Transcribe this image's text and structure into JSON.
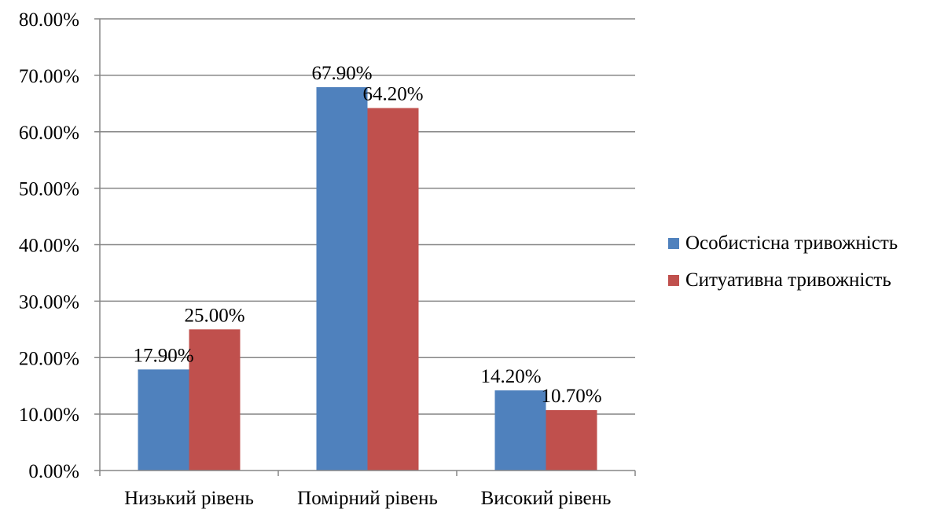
{
  "chart_data": {
    "type": "bar",
    "categories": [
      "Низький рівень",
      "Помірний рівень",
      "Високий рівень"
    ],
    "series": [
      {
        "name": "Особистісна тривожність",
        "values": [
          17.9,
          67.9,
          14.2
        ],
        "labels": [
          "17.90%",
          "67.90%",
          "14.20%"
        ],
        "color": "#4F81BD"
      },
      {
        "name": "Ситуативна тривожність",
        "values": [
          25.0,
          64.2,
          10.7
        ],
        "labels": [
          "25.00%",
          "64.20%",
          "10.70%"
        ],
        "color": "#C0504D"
      }
    ],
    "yticks": [
      0,
      10,
      20,
      30,
      40,
      50,
      60,
      70,
      80
    ],
    "ytick_labels": [
      "0.00%",
      "10.00%",
      "20.00%",
      "30.00%",
      "40.00%",
      "50.00%",
      "60.00%",
      "70.00%",
      "80.00%"
    ],
    "ylim": [
      0,
      80
    ],
    "grid": true,
    "legend_position": "right",
    "title": "",
    "xlabel": "",
    "ylabel": ""
  }
}
